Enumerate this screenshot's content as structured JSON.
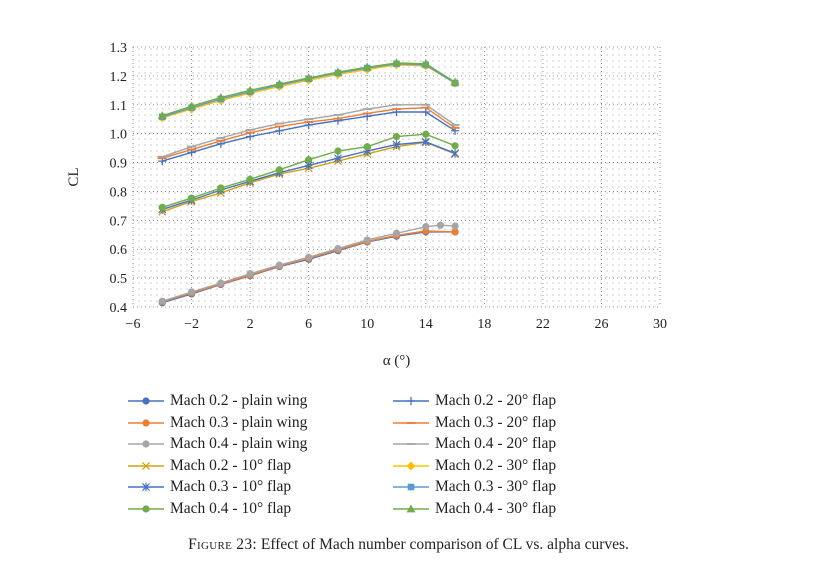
{
  "chart_data": {
    "type": "line",
    "title": "",
    "xlabel": "α (°)",
    "ylabel": "CL",
    "xlim": [
      -6,
      30
    ],
    "ylim": [
      0.4,
      1.3
    ],
    "xticks": [
      -6,
      -2,
      2,
      6,
      10,
      14,
      18,
      22,
      26,
      30
    ],
    "xtick_labels": [
      "−6",
      "−2",
      "2",
      "6",
      "10",
      "14",
      "18",
      "22",
      "26",
      "30"
    ],
    "yticks": [
      0.4,
      0.5,
      0.6,
      0.7,
      0.8,
      0.9,
      1.0,
      1.1,
      1.2,
      1.3
    ],
    "ytick_labels": [
      "0.4",
      "0.5",
      "0.6",
      "0.7",
      "0.8",
      "0.9",
      "1.0",
      "1.1",
      "1.2",
      "1.3"
    ],
    "grid": "dotted",
    "legend_position": "bottom",
    "series": [
      {
        "name": "Mach 0.2 - plain wing",
        "color": "#4472c4",
        "marker": "circle",
        "x": [
          -4,
          -2,
          0,
          2,
          4,
          6,
          8,
          10,
          12,
          14,
          16
        ],
        "y": [
          0.415,
          0.445,
          0.478,
          0.508,
          0.54,
          0.565,
          0.595,
          0.625,
          0.645,
          0.66,
          0.66
        ]
      },
      {
        "name": "Mach 0.3 - plain wing",
        "color": "#ed7d31",
        "marker": "circle",
        "x": [
          -4,
          -2,
          0,
          2,
          4,
          6,
          8,
          10,
          12,
          14,
          16
        ],
        "y": [
          0.418,
          0.448,
          0.48,
          0.51,
          0.542,
          0.568,
          0.598,
          0.627,
          0.648,
          0.663,
          0.66
        ]
      },
      {
        "name": "Mach 0.4 - plain wing",
        "color": "#a5a5a5",
        "marker": "circle",
        "x": [
          -4,
          -2,
          0,
          2,
          4,
          6,
          8,
          10,
          12,
          14,
          15,
          16
        ],
        "y": [
          0.42,
          0.452,
          0.483,
          0.515,
          0.545,
          0.572,
          0.602,
          0.632,
          0.655,
          0.678,
          0.683,
          0.68
        ]
      },
      {
        "name": "Mach 0.2 - 10° flap",
        "color": "#d4a017",
        "marker": "x",
        "x": [
          -4,
          -2,
          0,
          2,
          4,
          6,
          8,
          10,
          12,
          14,
          16
        ],
        "y": [
          0.73,
          0.765,
          0.795,
          0.83,
          0.86,
          0.88,
          0.905,
          0.93,
          0.955,
          0.97,
          0.93
        ]
      },
      {
        "name": "Mach 0.3 - 10° flap",
        "color": "#4472c4",
        "marker": "star",
        "x": [
          -4,
          -2,
          0,
          2,
          4,
          6,
          8,
          10,
          12,
          14,
          16
        ],
        "y": [
          0.738,
          0.77,
          0.805,
          0.835,
          0.865,
          0.89,
          0.915,
          0.94,
          0.962,
          0.972,
          0.932
        ]
      },
      {
        "name": "Mach 0.4 - 10° flap",
        "color": "#70ad47",
        "marker": "circle",
        "x": [
          -4,
          -2,
          0,
          2,
          4,
          6,
          8,
          10,
          12,
          14,
          16
        ],
        "y": [
          0.745,
          0.777,
          0.812,
          0.842,
          0.875,
          0.91,
          0.94,
          0.955,
          0.99,
          0.998,
          0.958
        ]
      },
      {
        "name": "Mach 0.2 - 20° flap",
        "color": "#4472c4",
        "marker": "plus",
        "x": [
          -4,
          -2,
          0,
          2,
          4,
          6,
          8,
          10,
          12,
          14,
          16
        ],
        "y": [
          0.905,
          0.935,
          0.965,
          0.99,
          1.01,
          1.03,
          1.045,
          1.06,
          1.075,
          1.075,
          1.01
        ]
      },
      {
        "name": "Mach 0.3 - 20° flap",
        "color": "#ed7d31",
        "marker": "dash",
        "x": [
          -4,
          -2,
          0,
          2,
          4,
          6,
          8,
          10,
          12,
          14,
          16
        ],
        "y": [
          0.915,
          0.945,
          0.975,
          1.003,
          1.025,
          1.04,
          1.052,
          1.07,
          1.085,
          1.09,
          1.02
        ]
      },
      {
        "name": "Mach 0.4 - 20° flap",
        "color": "#a5a5a5",
        "marker": "dash",
        "x": [
          -4,
          -2,
          0,
          2,
          4,
          6,
          8,
          10,
          12,
          14,
          16
        ],
        "y": [
          0.92,
          0.955,
          0.985,
          1.013,
          1.035,
          1.05,
          1.065,
          1.085,
          1.1,
          1.1,
          1.03
        ]
      },
      {
        "name": "Mach 0.2 - 30° flap",
        "color": "#ffc000",
        "marker": "diamond",
        "x": [
          -4,
          -2,
          0,
          2,
          4,
          6,
          8,
          10,
          12,
          14,
          16
        ],
        "y": [
          1.055,
          1.085,
          1.115,
          1.14,
          1.163,
          1.185,
          1.205,
          1.222,
          1.238,
          1.235,
          1.175
        ]
      },
      {
        "name": "Mach 0.3 - 30° flap",
        "color": "#5b9bd5",
        "marker": "square",
        "x": [
          -4,
          -2,
          0,
          2,
          4,
          6,
          8,
          10,
          12,
          14,
          16
        ],
        "y": [
          1.058,
          1.09,
          1.12,
          1.145,
          1.168,
          1.19,
          1.21,
          1.227,
          1.242,
          1.238,
          1.175
        ]
      },
      {
        "name": "Mach 0.4 - 30° flap",
        "color": "#70ad47",
        "marker": "triangle",
        "x": [
          -4,
          -2,
          0,
          2,
          4,
          6,
          8,
          10,
          12,
          14,
          16
        ],
        "y": [
          1.062,
          1.095,
          1.125,
          1.15,
          1.172,
          1.193,
          1.213,
          1.23,
          1.245,
          1.242,
          1.178
        ]
      }
    ]
  },
  "caption": {
    "lead": "Figure 23:",
    "text": " Effect of Mach number comparison of CL vs. alpha curves."
  }
}
